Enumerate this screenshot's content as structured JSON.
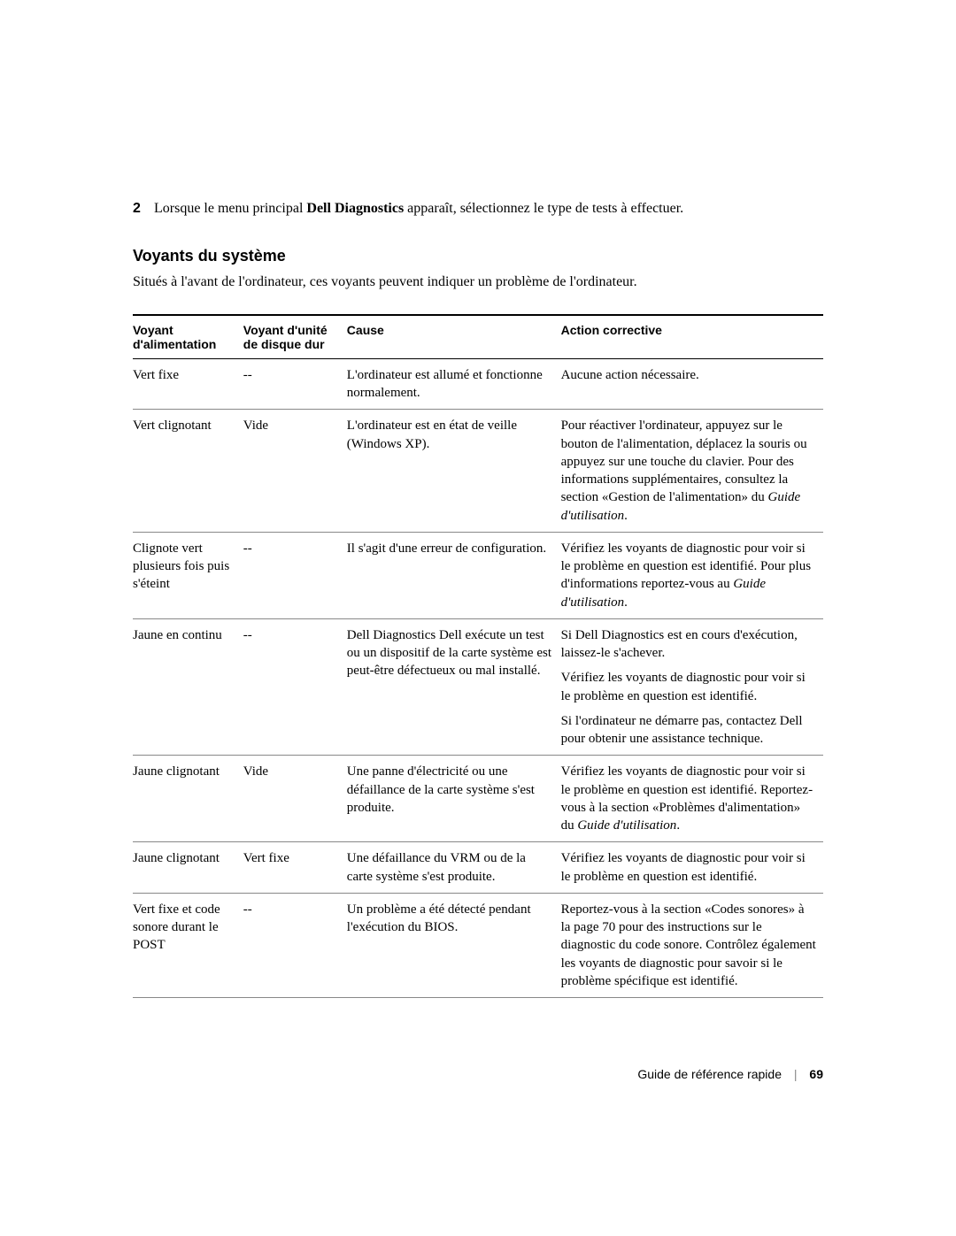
{
  "step": {
    "number": "2",
    "text_pre": "Lorsque le menu principal ",
    "text_bold": "Dell Diagnostics",
    "text_post": " apparaît, sélectionnez le type de tests à effectuer."
  },
  "heading": "Voyants du système",
  "intro": "Situés à l'avant de l'ordinateur, ces voyants peuvent indiquer un problème de l'ordinateur.",
  "table": {
    "headers": {
      "c1a": "Voyant",
      "c1b": "d'alimentation",
      "c2a": "Voyant d'unité",
      "c2b": "de disque dur",
      "c3": "Cause",
      "c4": "Action corrective"
    },
    "rows": [
      {
        "c1": "Vert fixe",
        "c2": "--",
        "c3": [
          {
            "t": "L'ordinateur est allumé et fonctionne normalement."
          }
        ],
        "c4": [
          {
            "t": "Aucune action nécessaire."
          }
        ]
      },
      {
        "c1": "Vert clignotant",
        "c2": "Vide",
        "c3": [
          {
            "t": "L'ordinateur est en état de veille (Windows XP)."
          }
        ],
        "c4": [
          {
            "t": "Pour réactiver l'ordinateur, appuyez sur le bouton de l'alimentation, déplacez la souris ou appuyez sur une touche du clavier. Pour des informations supplémentaires, consultez la section «Gestion de l'alimentation» du ",
            "i": "Guide d'utilisation",
            "post": "."
          }
        ]
      },
      {
        "c1": "Clignote vert plusieurs fois puis s'éteint",
        "c2": "--",
        "c3": [
          {
            "t": "Il s'agit d'une erreur de configuration."
          }
        ],
        "c4": [
          {
            "t": "Vérifiez les voyants de diagnostic pour voir si le problème en question est identifié. Pour plus d'informations reportez-vous au ",
            "i": "Guide d'utilisation",
            "post": "."
          }
        ]
      },
      {
        "c1": "Jaune en continu",
        "c2": "--",
        "c3": [
          {
            "t": "Dell Diagnostics Dell exécute un test ou un dispositif de la carte système est peut-être défectueux ou mal installé."
          }
        ],
        "c4": [
          {
            "t": "Si Dell Diagnostics est en cours d'exécution, laissez-le s'achever."
          },
          {
            "t": "Vérifiez les voyants de diagnostic pour voir si le problème en question est identifié."
          },
          {
            "t": "Si l'ordinateur ne démarre pas, contactez Dell pour obtenir une assistance technique."
          }
        ]
      },
      {
        "c1": "Jaune clignotant",
        "c2": "Vide",
        "c3": [
          {
            "t": "Une panne d'électricité ou une défaillance de la carte système s'est produite."
          }
        ],
        "c4": [
          {
            "t": "Vérifiez les voyants de diagnostic pour voir si le problème en question est identifié. Reportez-vous à la section «Problèmes d'alimentation» du ",
            "i": "Guide d'utilisation",
            "post": "."
          }
        ]
      },
      {
        "c1": "Jaune clignotant",
        "c2": "Vert fixe",
        "c3": [
          {
            "t": "Une défaillance du VRM ou de la carte système s'est produite."
          }
        ],
        "c4": [
          {
            "t": "Vérifiez les voyants de diagnostic pour voir si le problème en question est identifié."
          }
        ]
      },
      {
        "c1": "Vert fixe et code sonore durant le POST",
        "c2": "--",
        "c3": [
          {
            "t": "Un problème a été détecté pendant l'exécution du BIOS."
          }
        ],
        "c4": [
          {
            "t": "Reportez-vous à la section «Codes sonores» à la page 70 pour des instructions sur le diagnostic du code sonore. Contrôlez également les voyants de diagnostic pour savoir si le problème spécifique est identifié."
          }
        ]
      }
    ]
  },
  "footer": {
    "title": "Guide de référence rapide",
    "page": "69"
  },
  "colors": {
    "text": "#000000",
    "bg": "#ffffff",
    "rule": "#888888"
  }
}
